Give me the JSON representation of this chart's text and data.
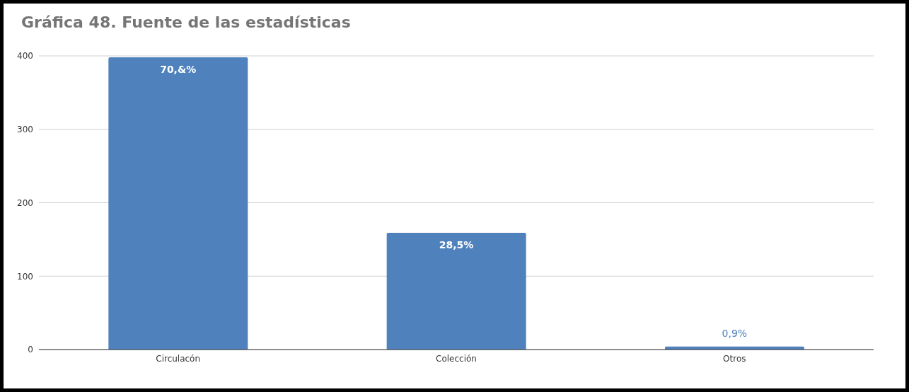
{
  "chart_data": {
    "type": "bar",
    "title": "Gráfica 48. Fuente de las estadísticas",
    "categories": [
      "Circulacón",
      "Colección",
      "Otros"
    ],
    "values": [
      398,
      159,
      4
    ],
    "annotations": [
      {
        "text": "70,&%",
        "x": "Circulacón",
        "y": 398
      },
      {
        "text": "28,5%",
        "x": "Colección",
        "y": 159
      },
      {
        "text": "0,9%",
        "x": "Otros",
        "y": 4
      }
    ],
    "color": "#4f81bd",
    "ylim": [
      0,
      400
    ],
    "yticks": [
      0,
      100,
      200,
      300,
      400
    ],
    "grid": "y"
  }
}
